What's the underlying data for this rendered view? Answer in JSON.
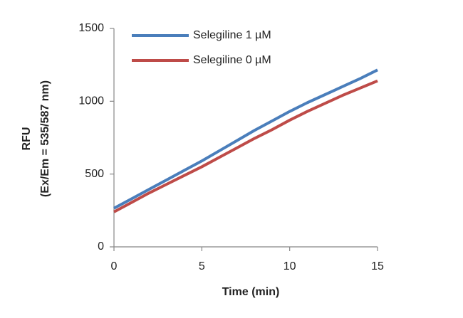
{
  "chart_data": {
    "type": "line",
    "xlabel": "Time (min)",
    "ylabel": [
      "RFU",
      "(Ex/Em = 535/587 nm)"
    ],
    "x": [
      0,
      1,
      2,
      3,
      4,
      5,
      6,
      7,
      8,
      9,
      10,
      11,
      12,
      13,
      14,
      15
    ],
    "series": [
      {
        "name": "Selegiline 1 µM",
        "color": "#4a7ebb",
        "values": [
          265,
          330,
          395,
          460,
          525,
          590,
          660,
          730,
          800,
          865,
          930,
          990,
          1045,
          1100,
          1155,
          1215
        ]
      },
      {
        "name": "Selegiline 0 µM",
        "color": "#be4b48",
        "values": [
          240,
          305,
          370,
          430,
          490,
          550,
          615,
          680,
          745,
          805,
          870,
          930,
          985,
          1040,
          1090,
          1140
        ]
      }
    ],
    "xlim": [
      0,
      15
    ],
    "xticks": [
      0,
      5,
      10,
      15
    ],
    "ylim": [
      0,
      1500
    ],
    "yticks": [
      0,
      500,
      1000,
      1500
    ],
    "legend": "upper left"
  }
}
